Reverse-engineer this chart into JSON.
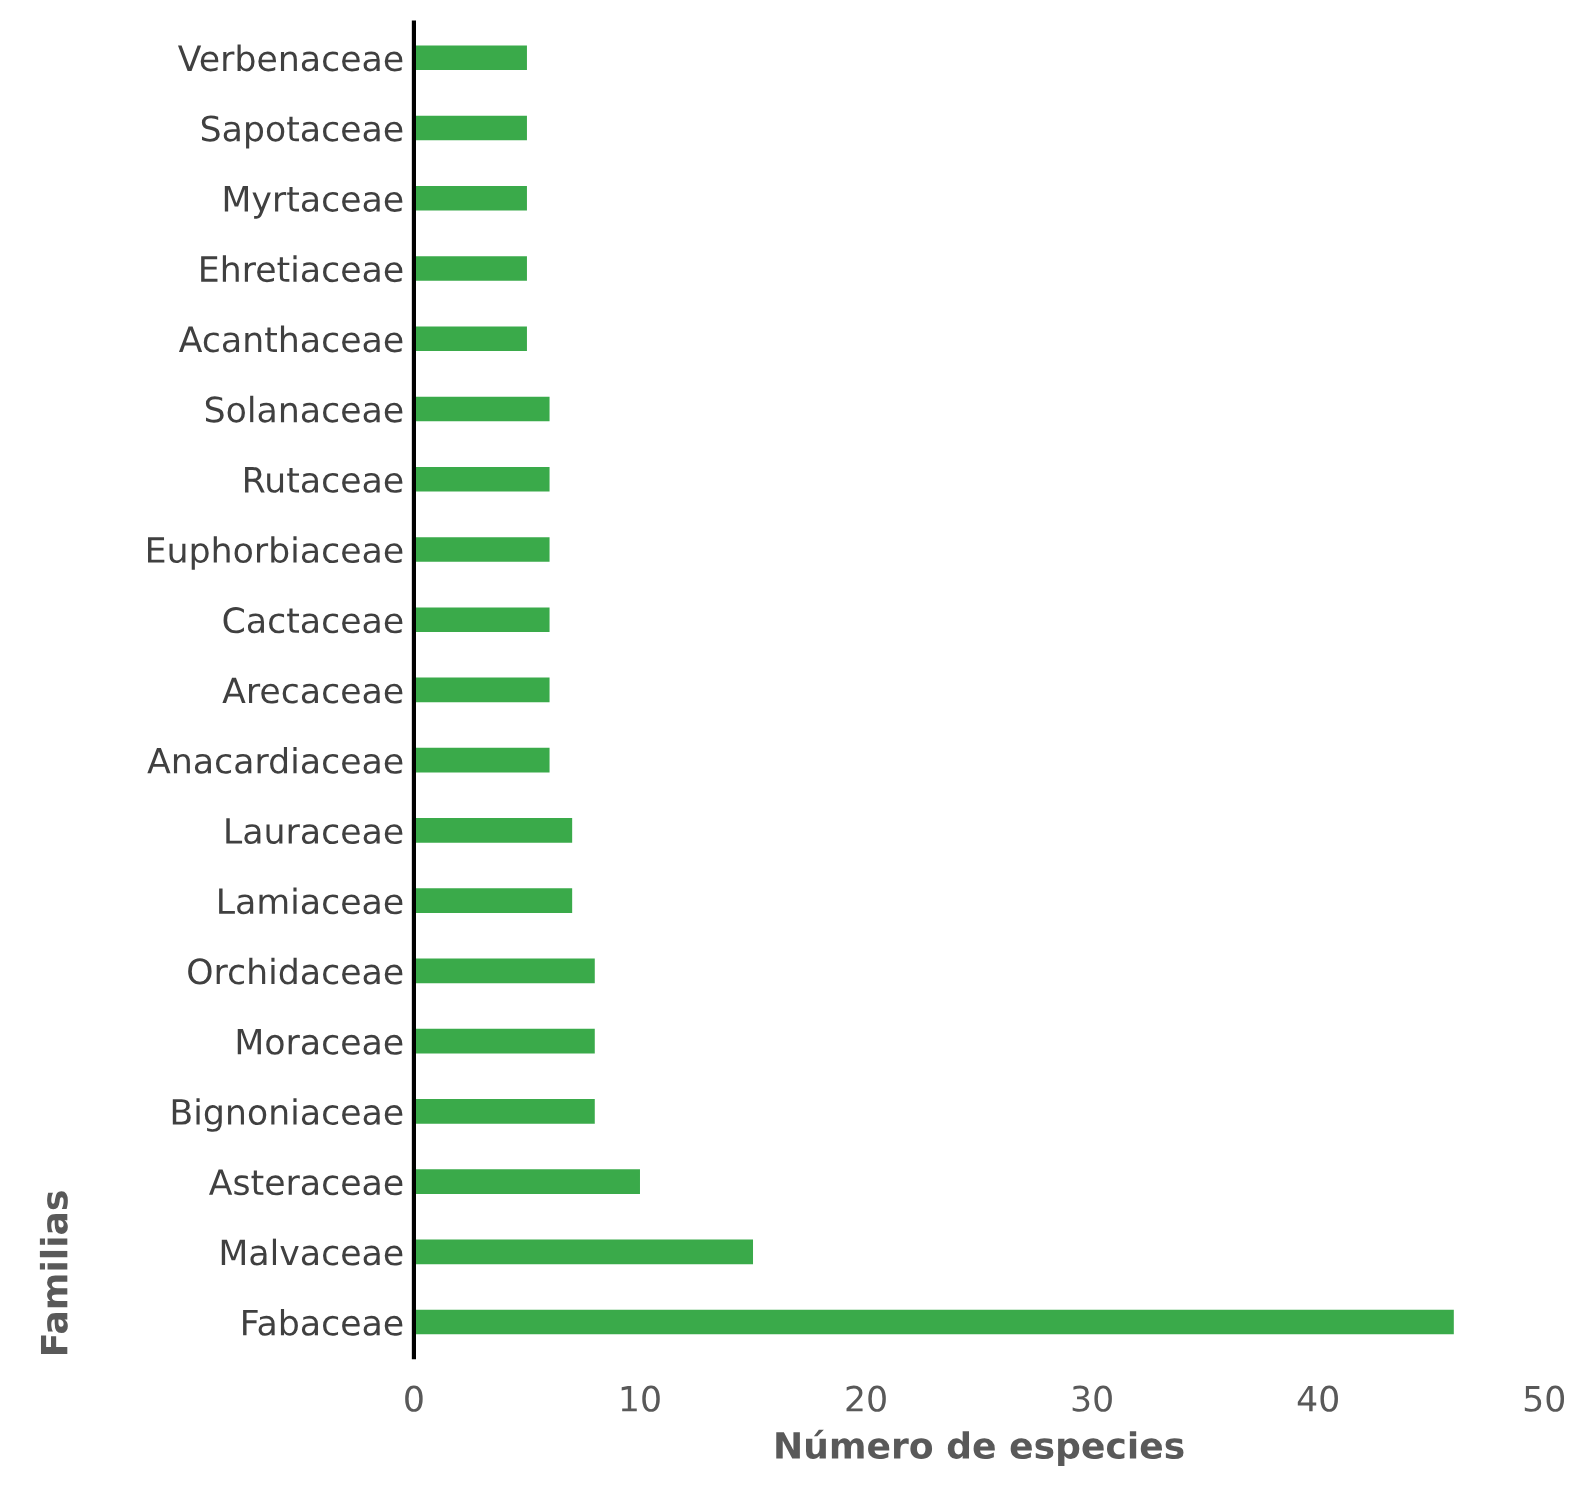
{
  "chart_data": {
    "type": "bar",
    "orientation": "horizontal",
    "xlabel": "Número de especies",
    "ylabel": "Familias",
    "categories": [
      "Verbenaceae",
      "Sapotaceae",
      "Myrtaceae",
      "Ehretiaceae",
      "Acanthaceae",
      "Solanaceae",
      "Rutaceae",
      "Euphorbiaceae",
      "Cactaceae",
      "Arecaceae",
      "Anacardiaceae",
      "Lauraceae",
      "Lamiaceae",
      "Orchidaceae",
      "Moraceae",
      "Bignoniaceae",
      "Asteraceae",
      "Malvaceae",
      "Fabaceae"
    ],
    "values": [
      5,
      5,
      5,
      5,
      5,
      6,
      6,
      6,
      6,
      6,
      6,
      7,
      7,
      8,
      8,
      8,
      10,
      15,
      46
    ],
    "color": "#3aaa4a",
    "xlim": [
      0,
      50
    ],
    "xticks": [
      0,
      10,
      20,
      30,
      40,
      50
    ],
    "grid": false,
    "legend": false
  }
}
